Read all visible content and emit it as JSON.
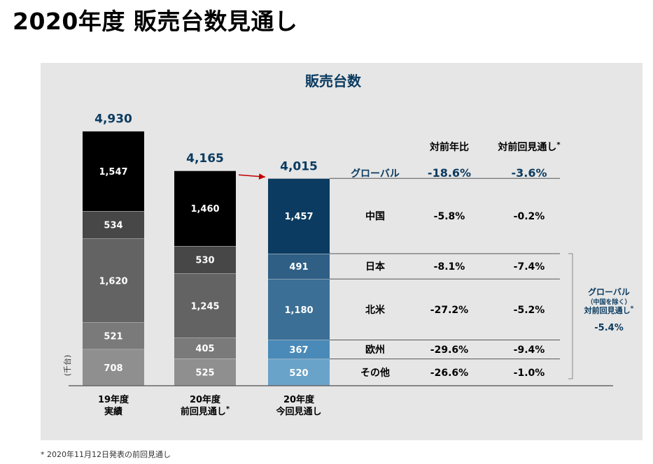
{
  "page_title": "2020年度 販売台数見通し",
  "footnote": "* 2020年11月12日発表の前回見通し",
  "chart_data": {
    "type": "bar",
    "title": "販売台数",
    "ylabel": "(千台)",
    "categories": [
      {
        "line1": "19年度",
        "line2": "実績",
        "mark": ""
      },
      {
        "line1": "20年度",
        "line2": "前回見通し",
        "mark": "*"
      },
      {
        "line1": "20年度",
        "line2": "今回見通し",
        "mark": ""
      }
    ],
    "totals": [
      "4,930",
      "4,165",
      "4,015"
    ],
    "total_values": [
      4930,
      4165,
      4015
    ],
    "series_order_bottom_up": [
      "その他",
      "欧州",
      "北米",
      "日本",
      "中国"
    ],
    "stacks": [
      [
        {
          "value": 708,
          "label": "708"
        },
        {
          "value": 521,
          "label": "521"
        },
        {
          "value": 1620,
          "label": "1,620"
        },
        {
          "value": 534,
          "label": "534"
        },
        {
          "value": 1547,
          "label": "1,547"
        }
      ],
      [
        {
          "value": 525,
          "label": "525"
        },
        {
          "value": 405,
          "label": "405"
        },
        {
          "value": 1245,
          "label": "1,245"
        },
        {
          "value": 530,
          "label": "530"
        },
        {
          "value": 1460,
          "label": "1,460"
        }
      ],
      [
        {
          "value": 520,
          "label": "520"
        },
        {
          "value": 367,
          "label": "367"
        },
        {
          "value": 1180,
          "label": "1,180"
        },
        {
          "value": 491,
          "label": "491"
        },
        {
          "value": 1457,
          "label": "1,457"
        }
      ]
    ],
    "colors": {
      "bar1": [
        "#8f8f8f",
        "#7a7a7a",
        "#636363",
        "#474747",
        "#000000"
      ],
      "bar2": [
        "#8f8f8f",
        "#7a7a7a",
        "#636363",
        "#474747",
        "#000000"
      ],
      "bar3": [
        "#6aa3c9",
        "#4a8ab8",
        "#3b6f96",
        "#2f5f85",
        "#0b3b60"
      ],
      "title": "#0b3b60",
      "arrow": "#c00000"
    },
    "table": {
      "col_headers": [
        "対前年比",
        "対前回見通し"
      ],
      "col_header_mark": [
        "",
        "*"
      ],
      "rows": [
        {
          "name": "グローバル",
          "yoy": "-18.6%",
          "vs_prev": "-3.6%"
        },
        {
          "name": "中国",
          "yoy": "-5.8%",
          "vs_prev": "-0.2%"
        },
        {
          "name": "日本",
          "yoy": "-8.1%",
          "vs_prev": "-7.4%"
        },
        {
          "name": "北米",
          "yoy": "-27.2%",
          "vs_prev": "-5.2%"
        },
        {
          "name": "欧州",
          "yoy": "-29.6%",
          "vs_prev": "-9.4%"
        },
        {
          "name": "その他",
          "yoy": "-26.6%",
          "vs_prev": "-1.0%"
        }
      ]
    },
    "side_note": {
      "line1": "グローバル",
      "line2": "（中国を除く）",
      "line3": "対前回見通し",
      "mark": "*",
      "value": "-5.4%"
    }
  }
}
